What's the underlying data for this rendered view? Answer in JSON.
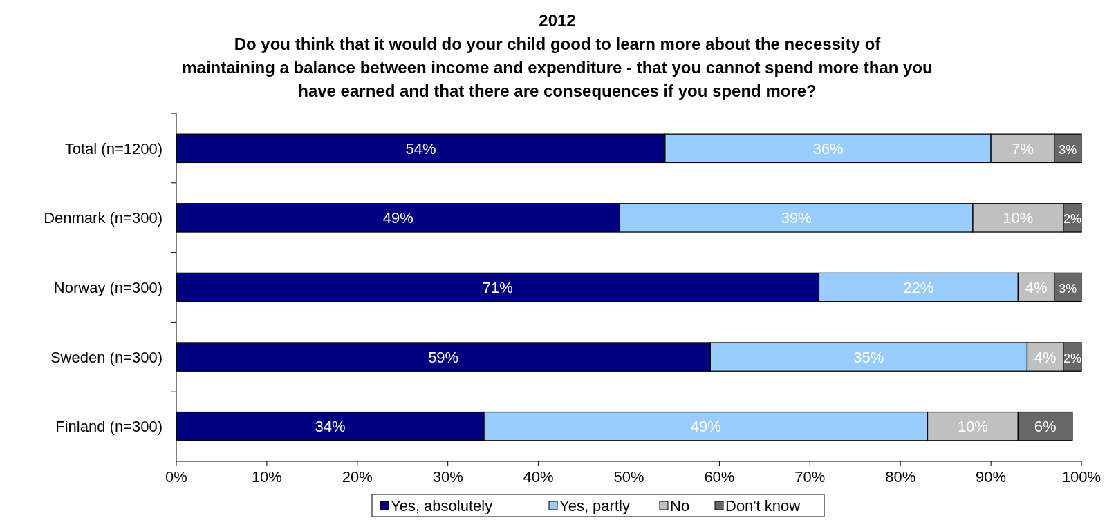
{
  "chart_data": {
    "type": "bar",
    "orientation": "horizontal",
    "stacked": true,
    "title": "2012",
    "subtitle": "Do you think that it would do your child good to learn more about the necessity of maintaining a balance between income and expenditure - that you cannot spend more than you have earned and that there are consequences if you spend more?",
    "categories": [
      "Total (n=1200)",
      "Denmark (n=300)",
      "Norway (n=300)",
      "Sweden (n=300)",
      "Finland (n=300)"
    ],
    "series": [
      {
        "name": "Yes, absolutely",
        "color": "#000080",
        "values": [
          54,
          49,
          71,
          59,
          34
        ],
        "value_labels": [
          "54%",
          "49%",
          "71%",
          "59%",
          "34%"
        ]
      },
      {
        "name": "Yes, partly",
        "color": "#99ccff",
        "values": [
          36,
          39,
          22,
          35,
          49
        ],
        "value_labels": [
          "36%",
          "39%",
          "22%",
          "35%",
          "49%"
        ]
      },
      {
        "name": "No",
        "color": "#c0c0c0",
        "values": [
          7,
          10,
          4,
          4,
          10
        ],
        "value_labels": [
          "7%",
          "10%",
          "4%",
          "4%",
          "10%"
        ]
      },
      {
        "name": "Don't know",
        "color": "#686868",
        "values": [
          3,
          2,
          3,
          2,
          6
        ],
        "value_labels": [
          "3%",
          "2%",
          "3%",
          "2%",
          "6%"
        ]
      }
    ],
    "xlim": [
      0,
      100
    ],
    "xticks": [
      {
        "value": 0,
        "label": "0%"
      },
      {
        "value": 10,
        "label": "10%"
      },
      {
        "value": 20,
        "label": "20%"
      },
      {
        "value": 30,
        "label": "30%"
      },
      {
        "value": 40,
        "label": "40%"
      },
      {
        "value": 50,
        "label": "50%"
      },
      {
        "value": 60,
        "label": "60%"
      },
      {
        "value": 70,
        "label": "70%"
      },
      {
        "value": 80,
        "label": "80%"
      },
      {
        "value": 90,
        "label": "90%"
      },
      {
        "value": 100,
        "label": "100%"
      }
    ],
    "legend": "bottom",
    "grid": false
  }
}
